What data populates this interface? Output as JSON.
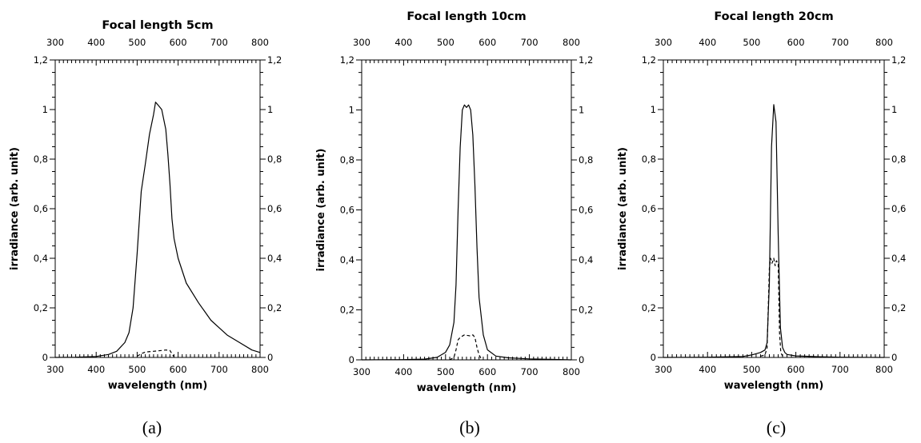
{
  "chart_data": [
    {
      "type": "line",
      "title": "Focal length 5cm",
      "caption": "(a)",
      "xlabel": "wavelength (nm)",
      "ylabel": "irradiance (arb. unit)",
      "xlim": [
        300,
        800
      ],
      "ylim": [
        0,
        1.2
      ],
      "x_ticks": [
        300,
        400,
        500,
        600,
        700,
        800
      ],
      "x_tick_labels": [
        "300",
        "400",
        "500",
        "600",
        "700",
        "800"
      ],
      "y_ticks": [
        0,
        0.2,
        0.4,
        0.6,
        0.8,
        1,
        1.2
      ],
      "y_tick_labels": [
        "0",
        "0,2",
        "0,4",
        "0,6",
        "0,8",
        "1",
        "1,2"
      ],
      "grid": false,
      "series": [
        {
          "style": "solid",
          "x": [
            300,
            350,
            400,
            430,
            450,
            470,
            480,
            490,
            500,
            510,
            520,
            530,
            540,
            545,
            550,
            555,
            560,
            570,
            575,
            580,
            585,
            590,
            600,
            620,
            650,
            680,
            700,
            720,
            750,
            780,
            800
          ],
          "y": [
            0.0,
            0.001,
            0.004,
            0.012,
            0.025,
            0.06,
            0.1,
            0.2,
            0.42,
            0.67,
            0.78,
            0.9,
            0.98,
            1.03,
            1.02,
            1.01,
            1.0,
            0.92,
            0.82,
            0.7,
            0.56,
            0.48,
            0.4,
            0.3,
            0.22,
            0.15,
            0.12,
            0.09,
            0.06,
            0.03,
            0.02
          ]
        },
        {
          "style": "dashed",
          "x": [
            500,
            510,
            520,
            540,
            560,
            570,
            580,
            585,
            590
          ],
          "y": [
            0.005,
            0.015,
            0.022,
            0.025,
            0.028,
            0.03,
            0.028,
            0.015,
            0.003
          ]
        }
      ]
    },
    {
      "type": "line",
      "title": "Focal length 10cm",
      "caption": "(b)",
      "xlabel": "wavelength (nm)",
      "ylabel": "irradiance (arb. unit)",
      "xlim": [
        300,
        800
      ],
      "ylim": [
        0,
        1.2
      ],
      "x_ticks": [
        300,
        400,
        500,
        600,
        700,
        800
      ],
      "x_tick_labels": [
        "300",
        "400",
        "500",
        "600",
        "700",
        "800"
      ],
      "y_ticks": [
        0,
        0.2,
        0.4,
        0.6,
        0.8,
        1,
        1.2
      ],
      "y_tick_labels": [
        "0",
        "0,2",
        "0,4",
        "0,6",
        "0,8",
        "1",
        "1,2"
      ],
      "grid": false,
      "series": [
        {
          "style": "solid",
          "x": [
            300,
            400,
            450,
            480,
            500,
            510,
            520,
            525,
            530,
            535,
            540,
            545,
            550,
            555,
            560,
            565,
            570,
            575,
            580,
            590,
            600,
            620,
            650,
            700,
            750,
            800
          ],
          "y": [
            0.0,
            0.001,
            0.003,
            0.01,
            0.03,
            0.06,
            0.15,
            0.3,
            0.6,
            0.85,
            1.0,
            1.02,
            1.01,
            1.02,
            1.0,
            0.9,
            0.7,
            0.45,
            0.25,
            0.1,
            0.04,
            0.015,
            0.008,
            0.004,
            0.002,
            0.0
          ]
        },
        {
          "style": "dashed",
          "x": [
            510,
            520,
            525,
            530,
            535,
            540,
            545,
            550,
            555,
            560,
            565,
            570,
            575,
            580,
            585
          ],
          "y": [
            0.0,
            0.01,
            0.04,
            0.08,
            0.09,
            0.095,
            0.1,
            0.098,
            0.097,
            0.095,
            0.1,
            0.09,
            0.05,
            0.02,
            0.005
          ]
        }
      ]
    },
    {
      "type": "line",
      "title": "Focal length 20cm",
      "caption": "(c)",
      "xlabel": "wavelength (nm)",
      "ylabel": "irradiance (arb. unit)",
      "xlim": [
        300,
        800
      ],
      "ylim": [
        0,
        1.2
      ],
      "x_ticks": [
        300,
        400,
        500,
        600,
        700,
        800
      ],
      "x_tick_labels": [
        "300",
        "400",
        "500",
        "600",
        "700",
        "800"
      ],
      "y_ticks": [
        0,
        0.2,
        0.4,
        0.6,
        0.8,
        1,
        1.2
      ],
      "y_tick_labels": [
        "0",
        "0,2",
        "0,4",
        "0,6",
        "0,8",
        "1",
        "1,2"
      ],
      "grid": false,
      "series": [
        {
          "style": "solid",
          "x": [
            300,
            400,
            480,
            500,
            520,
            530,
            535,
            540,
            545,
            550,
            555,
            560,
            565,
            570,
            575,
            580,
            600,
            650,
            700,
            800
          ],
          "y": [
            0.0,
            0.001,
            0.004,
            0.01,
            0.02,
            0.03,
            0.06,
            0.3,
            0.85,
            1.02,
            0.95,
            0.5,
            0.12,
            0.04,
            0.02,
            0.012,
            0.006,
            0.003,
            0.001,
            0.0
          ]
        },
        {
          "style": "dashed",
          "x": [
            520,
            530,
            535,
            540,
            543,
            546,
            550,
            553,
            556,
            560,
            563,
            566,
            570
          ],
          "y": [
            0.005,
            0.01,
            0.04,
            0.36,
            0.4,
            0.38,
            0.4,
            0.37,
            0.39,
            0.38,
            0.1,
            0.02,
            0.005
          ]
        }
      ]
    }
  ]
}
